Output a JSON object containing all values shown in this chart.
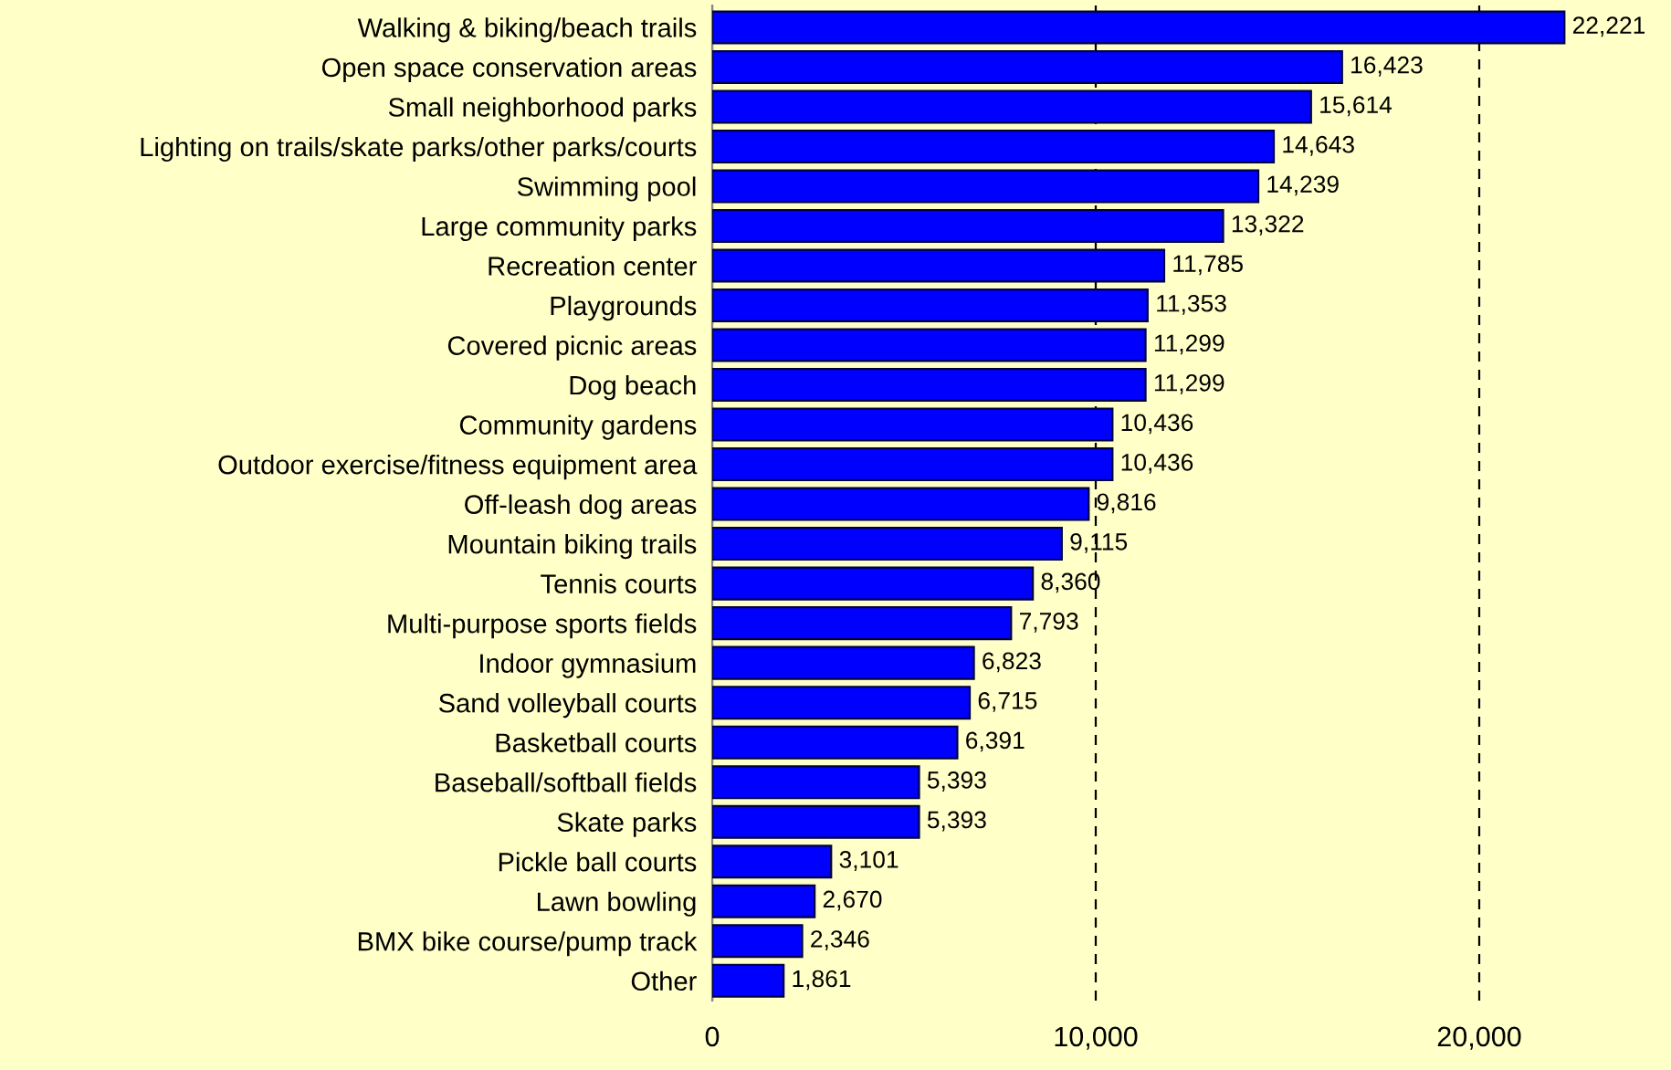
{
  "chart_data": {
    "type": "bar",
    "orientation": "horizontal",
    "categories": [
      "Walking & biking/beach trails",
      "Open space conservation areas",
      "Small neighborhood parks",
      "Lighting on trails/skate parks/other parks/courts",
      "Swimming pool",
      "Large community parks",
      "Recreation center",
      "Playgrounds",
      "Covered picnic areas",
      "Dog beach",
      "Community gardens",
      "Outdoor exercise/fitness equipment area",
      "Off-leash dog areas",
      "Mountain biking trails",
      "Tennis courts",
      "Multi-purpose sports fields",
      "Indoor gymnasium",
      "Sand volleyball courts",
      "Basketball courts",
      "Baseball/softball fields",
      "Skate parks",
      "Pickle ball courts",
      "Lawn bowling",
      "BMX bike course/pump track",
      "Other"
    ],
    "values": [
      22221,
      16423,
      15614,
      14643,
      14239,
      13322,
      11785,
      11353,
      11299,
      11299,
      10436,
      10436,
      9816,
      9115,
      8360,
      7793,
      6823,
      6715,
      6391,
      5393,
      5393,
      3101,
      2670,
      2346,
      1861
    ],
    "value_labels": [
      "22,221",
      "16,423",
      "15,614",
      "14,643",
      "14,239",
      "13,322",
      "11,785",
      "11,353",
      "11,299",
      "11,299",
      "10,436",
      "10,436",
      "9,816",
      "9,115",
      "8,360",
      "7,793",
      "6,823",
      "6,715",
      "6,391",
      "5,393",
      "5,393",
      "3,101",
      "2,670",
      "2,346",
      "1,861"
    ],
    "color": "#0000ff",
    "xlim": [
      0,
      25000
    ],
    "xticks": [
      {
        "value": 0,
        "label": "0"
      },
      {
        "value": 10000,
        "label": "10,000"
      },
      {
        "value": 20000,
        "label": "20,000"
      }
    ],
    "grid": "x",
    "line_style": "dashed",
    "legend": false
  }
}
